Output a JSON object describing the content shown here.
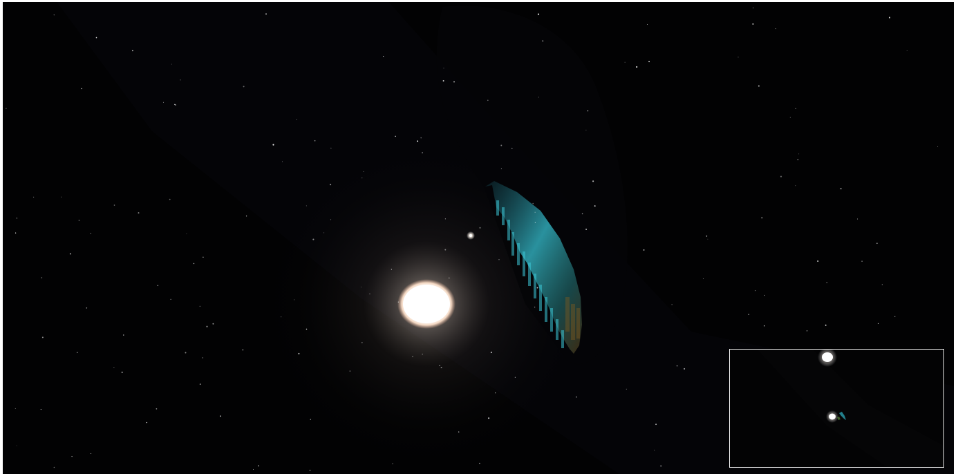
{
  "scene": {
    "description_hidden": "",
    "colors": {
      "space": "#020203",
      "sun_core": "#ffffff",
      "sun_glow": "#f3dcc8",
      "planet_shadow": "#050507",
      "planet_cyan": "#2fb4c4",
      "planet_amber": "#6a4a1a",
      "frame": "#ffffff",
      "minimap_border": "#e8e8e8"
    },
    "icons": [
      "sun-icon",
      "star-icon",
      "planet-icon"
    ]
  },
  "minimap": {
    "label": ""
  }
}
